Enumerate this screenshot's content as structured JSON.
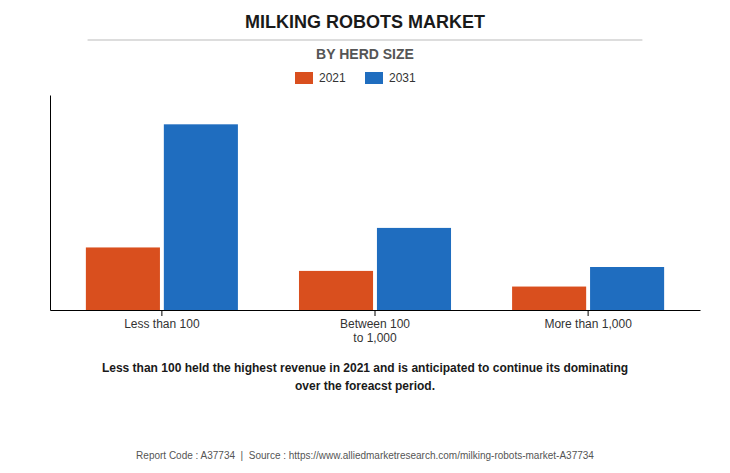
{
  "chart_data": {
    "type": "bar",
    "title": "MILKING ROBOTS MARKET",
    "subtitle": "BY HERD SIZE",
    "categories": [
      "Less than 100",
      "Between 100\nto 1,000",
      "More than 1,000"
    ],
    "series": [
      {
        "name": "2021",
        "color": "#d94f1e",
        "values": [
          3.2,
          2.0,
          1.2
        ]
      },
      {
        "name": "2031",
        "color": "#1f6dbf",
        "values": [
          9.5,
          4.2,
          2.2
        ]
      }
    ],
    "ylim": [
      0,
      11
    ],
    "yticks": [],
    "tick_labels": "x",
    "legend": "top",
    "annotation": "Less than 100 held the highest revenue in 2021 and is anticipated to continue its dominating\nover the foreacst period.",
    "footer": "Report Code : A37734  |  Source : https://www.alliedmarketresearch.com/milking-robots-market-A37734"
  }
}
